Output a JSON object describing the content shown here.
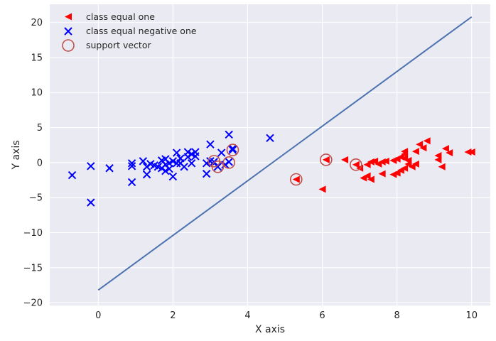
{
  "chart_data": {
    "type": "scatter",
    "title": "",
    "xlabel": "X axis",
    "ylabel": "Y axis",
    "xlim": [
      -1.3,
      10.5
    ],
    "ylim": [
      -20.4,
      22.6
    ],
    "xticks": [
      0,
      2,
      4,
      6,
      8,
      10
    ],
    "yticks": [
      -20,
      -15,
      -10,
      -5,
      0,
      5,
      10,
      15,
      20
    ],
    "xtick_labels": [
      "0",
      "2",
      "4",
      "6",
      "8",
      "10"
    ],
    "ytick_labels": [
      "−20",
      "−15",
      "−10",
      "−5",
      "0",
      "5",
      "10",
      "15",
      "20"
    ],
    "grid": true,
    "legend_position": "top-left",
    "series": [
      {
        "name": "class equal one",
        "marker": "left-triangle",
        "color": "#ff0000",
        "points": [
          [
            6.0,
            -3.8
          ],
          [
            5.3,
            -2.4
          ],
          [
            6.1,
            0.4
          ],
          [
            6.6,
            0.4
          ],
          [
            6.9,
            -0.3
          ],
          [
            7.0,
            -0.8
          ],
          [
            7.1,
            -2.2
          ],
          [
            7.2,
            -1.9
          ],
          [
            7.3,
            -2.4
          ],
          [
            7.2,
            -0.3
          ],
          [
            7.3,
            0.1
          ],
          [
            7.4,
            0.2
          ],
          [
            7.5,
            -0.2
          ],
          [
            7.6,
            0.1
          ],
          [
            7.6,
            -1.6
          ],
          [
            7.7,
            0.2
          ],
          [
            7.9,
            -1.7
          ],
          [
            7.9,
            0.3
          ],
          [
            8.0,
            0.5
          ],
          [
            8.0,
            -1.5
          ],
          [
            8.1,
            -1.1
          ],
          [
            8.1,
            0.8
          ],
          [
            8.2,
            1.2
          ],
          [
            8.2,
            1.6
          ],
          [
            8.2,
            -0.8
          ],
          [
            8.3,
            0.3
          ],
          [
            8.3,
            -0.2
          ],
          [
            8.4,
            -0.6
          ],
          [
            8.5,
            1.6
          ],
          [
            8.5,
            -0.2
          ],
          [
            8.6,
            2.6
          ],
          [
            8.7,
            2.1
          ],
          [
            8.8,
            3.1
          ],
          [
            9.1,
            1.0
          ],
          [
            9.1,
            0.4
          ],
          [
            9.2,
            -0.6
          ],
          [
            9.3,
            2.0
          ],
          [
            9.4,
            1.4
          ],
          [
            9.9,
            1.5
          ],
          [
            10.0,
            1.5
          ],
          [
            8.2,
            0.6
          ]
        ]
      },
      {
        "name": "class equal negative one",
        "marker": "x",
        "color": "#0000ff",
        "points": [
          [
            -0.7,
            -1.8
          ],
          [
            -0.2,
            -0.5
          ],
          [
            -0.2,
            -5.7
          ],
          [
            0.3,
            -0.8
          ],
          [
            0.9,
            -0.1
          ],
          [
            0.9,
            -2.8
          ],
          [
            0.9,
            -0.5
          ],
          [
            1.2,
            0.2
          ],
          [
            1.3,
            -0.6
          ],
          [
            1.3,
            -1.7
          ],
          [
            1.4,
            -0.2
          ],
          [
            1.5,
            -0.4
          ],
          [
            1.6,
            -0.6
          ],
          [
            1.7,
            0.3
          ],
          [
            1.7,
            -0.8
          ],
          [
            1.8,
            -1.2
          ],
          [
            1.8,
            -0.3
          ],
          [
            1.8,
            0.5
          ],
          [
            1.9,
            -0.1
          ],
          [
            1.9,
            -0.9
          ],
          [
            2.0,
            -2.0
          ],
          [
            2.0,
            0.2
          ],
          [
            2.1,
            -0.1
          ],
          [
            2.1,
            1.4
          ],
          [
            2.2,
            -0.1
          ],
          [
            2.2,
            0.6
          ],
          [
            2.3,
            -0.6
          ],
          [
            2.4,
            1.5
          ],
          [
            2.4,
            0.8
          ],
          [
            2.5,
            1.2
          ],
          [
            2.5,
            -0.1
          ],
          [
            2.6,
            1.5
          ],
          [
            2.6,
            0.9
          ],
          [
            2.9,
            -0.1
          ],
          [
            2.9,
            -1.6
          ],
          [
            3.0,
            2.6
          ],
          [
            3.1,
            0.1
          ],
          [
            3.2,
            -0.6
          ],
          [
            3.3,
            1.4
          ],
          [
            3.4,
            -0.3
          ],
          [
            3.5,
            0.1
          ],
          [
            3.5,
            4.0
          ],
          [
            3.6,
            2.0
          ],
          [
            3.6,
            1.8
          ],
          [
            4.6,
            3.5
          ],
          [
            3.0,
            0.2
          ]
        ]
      },
      {
        "name": "support vector",
        "marker": "circle",
        "color": "#c0504d",
        "points": [
          [
            3.1,
            0.2
          ],
          [
            3.2,
            -0.6
          ],
          [
            3.5,
            0.0
          ],
          [
            3.6,
            1.8
          ],
          [
            5.3,
            -2.4
          ],
          [
            6.1,
            0.4
          ],
          [
            6.9,
            -0.3
          ]
        ]
      }
    ],
    "decision_line": {
      "color": "#4c72b0",
      "x": [
        0,
        10
      ],
      "y": [
        -18.2,
        20.8
      ]
    }
  }
}
